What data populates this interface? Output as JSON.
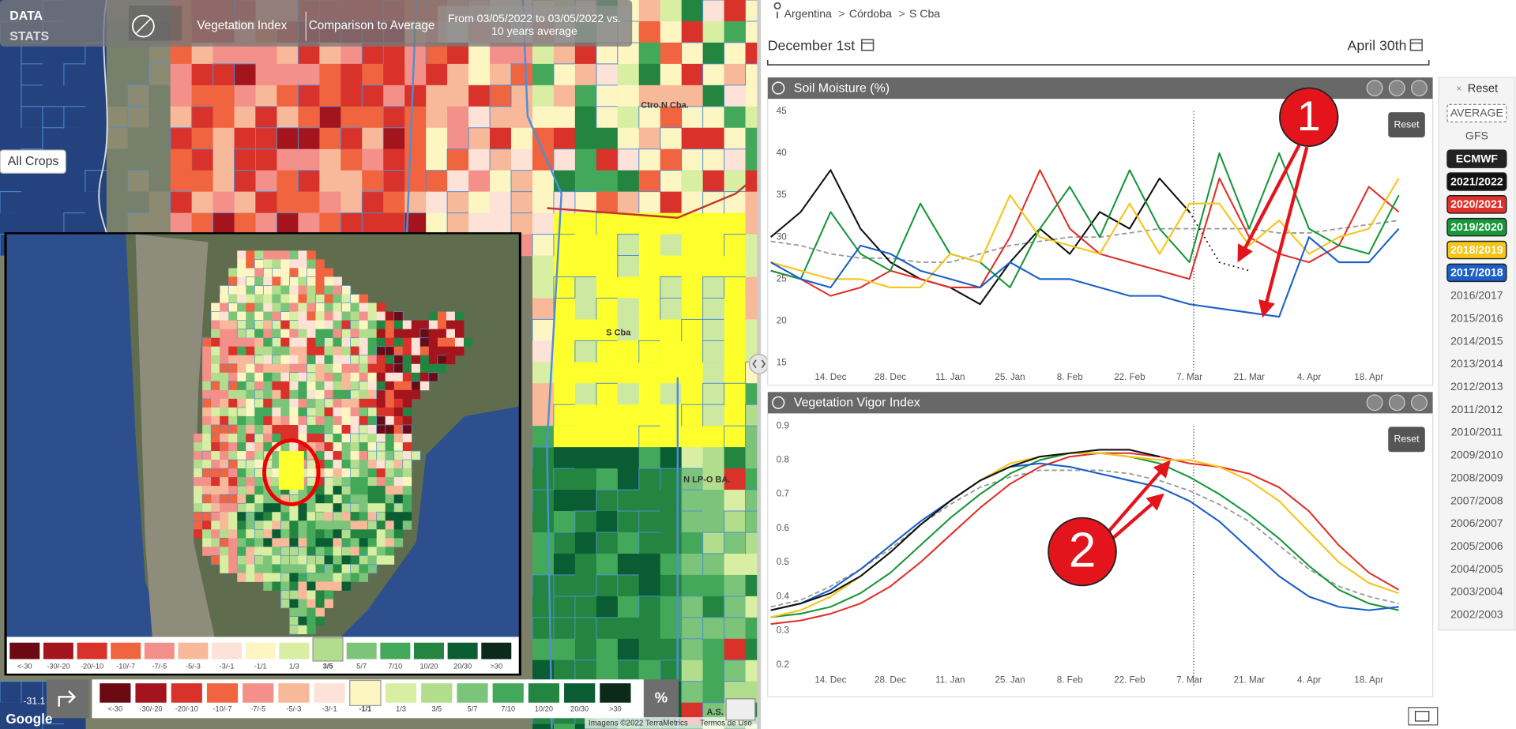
{
  "map": {
    "header": {
      "data": "DATA",
      "stats": "STATS",
      "index": "Vegetation Index",
      "comparison": "Comparison to Average",
      "period": [
        "From 03/05/2022 to 03/05/2022 vs.",
        "10 years average"
      ]
    },
    "crops": "All Crops",
    "labels": [
      "Ctro.N Cba.",
      "S Cba",
      "N LP-O BA."
    ],
    "legend": {
      "labels": [
        "<-30",
        "-30/-20",
        "-20/-10",
        "-10/-7",
        "-7/-5",
        "-5/-3",
        "-3/-1",
        "-1/1",
        "1/3",
        "3/5",
        "5/7",
        "7/10",
        "10/20",
        "20/30",
        ">30"
      ],
      "colors": [
        "#6b0a12",
        "#a3141c",
        "#d8322a",
        "#f0643f",
        "#f4908a",
        "#f8b89a",
        "#fde2d8",
        "#fdf6c3",
        "#d8eea3",
        "#b2dd8c",
        "#7cc47a",
        "#43a85a",
        "#23853f",
        "#0a5c32",
        "#0b2a1a"
      ],
      "selected_inset": 9,
      "selected_bar": 7,
      "unit": "%"
    },
    "coordinate": "-31.1",
    "partial_label": "A.S. LP",
    "attribution": [
      "Imagens ©2022 TerraMetrics",
      "Termos de Uso"
    ],
    "brand": "Google"
  },
  "panel": {
    "breadcrumb": {
      "items": [
        "Argentina",
        "Córdoba",
        "S Cba"
      ],
      "separator": ">"
    },
    "range": {
      "start": "December 1st",
      "end": "April 30th"
    },
    "sidebar": {
      "close": "×",
      "reset": "Reset",
      "gfs": "GFS",
      "years": [
        "2016/2017",
        "2015/2016",
        "2014/2015",
        "2013/2014",
        "2012/2013",
        "2011/2012",
        "2010/2011",
        "2009/2010",
        "2008/2009",
        "2007/2008",
        "2006/2007",
        "2005/2006",
        "2004/2005",
        "2003/2004",
        "2002/2003"
      ]
    }
  },
  "chart_data": [
    {
      "type": "line",
      "title": "Soil Moisture (%)",
      "reset": "Reset",
      "categories": [
        null,
        null,
        "14. Dec",
        null,
        "28. Dec",
        null,
        "11. Jan",
        null,
        "25. Jan",
        null,
        "8. Feb",
        null,
        "22. Feb",
        null,
        "7. Mar",
        null,
        "21. Mar",
        null,
        "4. Apr",
        null,
        "18. Apr",
        null
      ],
      "ylim": [
        15,
        45
      ],
      "yticks": [
        15,
        20,
        25,
        30,
        35,
        40,
        45
      ],
      "grid": false,
      "series": [
        {
          "name": "AVERAGE",
          "color": "#9a9a9a",
          "style": "dashed",
          "values": [
            29.5,
            29,
            28,
            27.5,
            27.5,
            27,
            27,
            28,
            29,
            29.5,
            30,
            30,
            30.5,
            31,
            31,
            31,
            31,
            30.5,
            30.5,
            31,
            31.5,
            32
          ]
        },
        {
          "name": "ECMWF",
          "color": "#111111",
          "style": "dotted",
          "values": [
            null,
            null,
            null,
            null,
            null,
            null,
            null,
            null,
            null,
            null,
            null,
            null,
            null,
            null,
            33,
            27,
            26,
            null,
            null,
            null,
            null,
            null
          ]
        },
        {
          "name": "2021/2022",
          "color": "#111111",
          "style": "solid",
          "values": [
            30,
            33,
            38,
            31,
            27,
            25,
            24,
            22,
            27,
            31,
            28,
            33,
            31,
            37,
            33,
            null,
            null,
            null,
            null,
            null,
            null,
            null
          ]
        },
        {
          "name": "2020/2021",
          "color": "#e0302a",
          "style": "solid",
          "values": [
            26,
            25,
            23,
            24,
            26,
            25,
            24,
            24,
            30,
            38,
            31,
            28,
            27,
            26,
            25,
            37,
            30,
            28,
            27,
            29,
            36,
            33
          ]
        },
        {
          "name": "2019/2020",
          "color": "#17973a",
          "style": "solid",
          "values": [
            26,
            25,
            33,
            28,
            26,
            34,
            28,
            27,
            24,
            31,
            36,
            30,
            38,
            31,
            27,
            40,
            31,
            40,
            31,
            29,
            28,
            35
          ]
        },
        {
          "name": "2018/2019",
          "color": "#f5c518",
          "style": "solid",
          "values": [
            27,
            26,
            25,
            25,
            24,
            24,
            28,
            27,
            35,
            30,
            29,
            28,
            34,
            28,
            34,
            34,
            29,
            32,
            28,
            30,
            31,
            37
          ]
        },
        {
          "name": "2017/2018",
          "color": "#1a5fc8",
          "style": "solid",
          "values": [
            27,
            25,
            24,
            29,
            28,
            26,
            25,
            24,
            27,
            25,
            25,
            24,
            23,
            23,
            22,
            21.5,
            21,
            20.5,
            30,
            27,
            27,
            31
          ]
        }
      ],
      "annotations": [
        "1"
      ]
    },
    {
      "type": "line",
      "title": "Vegetation Vigor Index",
      "reset": "Reset",
      "categories": [
        null,
        null,
        "14. Dec",
        null,
        "28. Dec",
        null,
        "11. Jan",
        null,
        "25. Jan",
        null,
        "8. Feb",
        null,
        "22. Feb",
        null,
        "7. Mar",
        null,
        "21. Mar",
        null,
        "4. Apr",
        null,
        "18. Apr",
        null
      ],
      "ylim": [
        0.2,
        0.9
      ],
      "yticks": [
        0.2,
        0.3,
        0.4,
        0.5,
        0.6,
        0.7,
        0.8,
        0.9
      ],
      "grid": false,
      "series": [
        {
          "color": "#9a9a9a",
          "style": "dashed",
          "values": [
            0.37,
            0.39,
            0.43,
            0.48,
            0.54,
            0.61,
            0.67,
            0.72,
            0.75,
            0.77,
            0.77,
            0.77,
            0.76,
            0.74,
            0.71,
            0.67,
            0.62,
            0.55,
            0.48,
            0.43,
            0.4,
            0.38
          ]
        },
        {
          "color": "#e0302a",
          "style": "solid",
          "values": [
            0.32,
            0.33,
            0.35,
            0.38,
            0.43,
            0.5,
            0.58,
            0.66,
            0.73,
            0.78,
            0.81,
            0.82,
            0.82,
            0.81,
            0.79,
            0.78,
            0.76,
            0.72,
            0.65,
            0.55,
            0.47,
            0.42
          ]
        },
        {
          "color": "#17973a",
          "style": "solid",
          "values": [
            0.34,
            0.35,
            0.37,
            0.41,
            0.47,
            0.55,
            0.63,
            0.7,
            0.76,
            0.8,
            0.82,
            0.82,
            0.81,
            0.79,
            0.75,
            0.7,
            0.64,
            0.57,
            0.49,
            0.42,
            0.38,
            0.36
          ]
        },
        {
          "color": "#f5c518",
          "style": "solid",
          "values": [
            0.34,
            0.36,
            0.4,
            0.46,
            0.53,
            0.61,
            0.68,
            0.74,
            0.79,
            0.81,
            0.82,
            0.82,
            0.81,
            0.8,
            0.8,
            0.78,
            0.74,
            0.68,
            0.59,
            0.5,
            0.44,
            0.41
          ]
        },
        {
          "color": "#1a5fc8",
          "style": "solid",
          "values": [
            0.36,
            0.38,
            0.42,
            0.48,
            0.55,
            0.62,
            0.68,
            0.74,
            0.78,
            0.79,
            0.78,
            0.76,
            0.74,
            0.72,
            0.68,
            0.62,
            0.54,
            0.46,
            0.4,
            0.37,
            0.36,
            0.37
          ]
        },
        {
          "color": "#111111",
          "style": "solid",
          "values": [
            0.36,
            0.38,
            0.41,
            0.46,
            0.53,
            0.61,
            0.68,
            0.74,
            0.78,
            0.81,
            0.82,
            0.83,
            0.83,
            0.81,
            null,
            null,
            null,
            null,
            null,
            null,
            null,
            null
          ]
        }
      ],
      "annotations": [
        "2"
      ]
    }
  ]
}
